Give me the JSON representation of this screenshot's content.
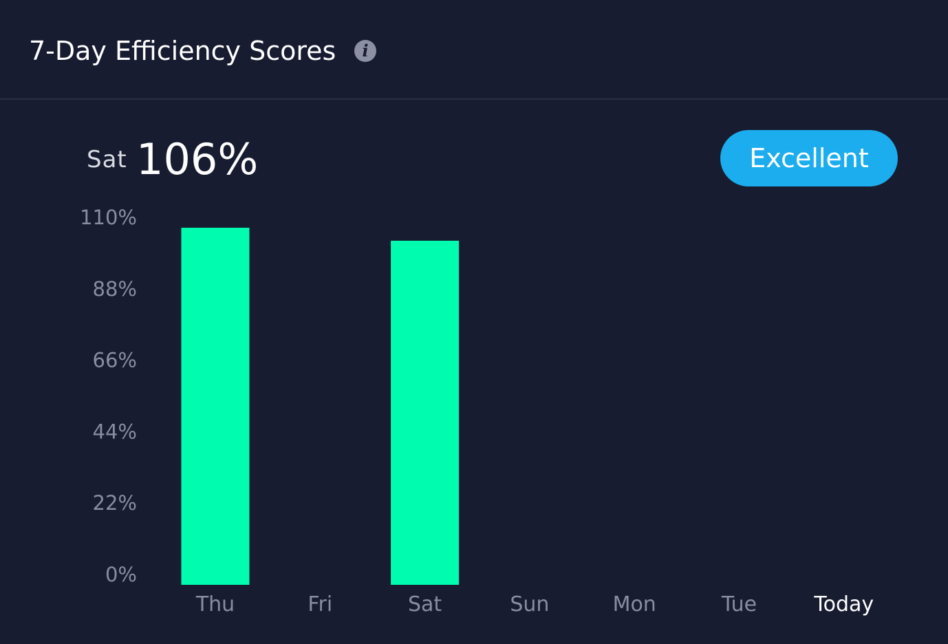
{
  "header": {
    "title": "7-Day Efficiency Scores",
    "info_icon": "info-icon"
  },
  "selection": {
    "day": "Sat",
    "value": "106%",
    "rating": "Excellent"
  },
  "colors": {
    "background": "#181c31",
    "bar": "#00fcae",
    "badge": "#1cadee",
    "tick_text": "#8a8d9e",
    "today_text": "#ffffff"
  },
  "chart_data": {
    "type": "bar",
    "categories": [
      "Thu",
      "Fri",
      "Sat",
      "Sun",
      "Mon",
      "Tue",
      "Today"
    ],
    "values": [
      110,
      null,
      106,
      null,
      null,
      null,
      null
    ],
    "y_ticks": [
      "0%",
      "22%",
      "44%",
      "66%",
      "88%",
      "110%"
    ],
    "ylim": [
      0,
      110
    ],
    "grid": false,
    "highlight_category": "Today"
  }
}
